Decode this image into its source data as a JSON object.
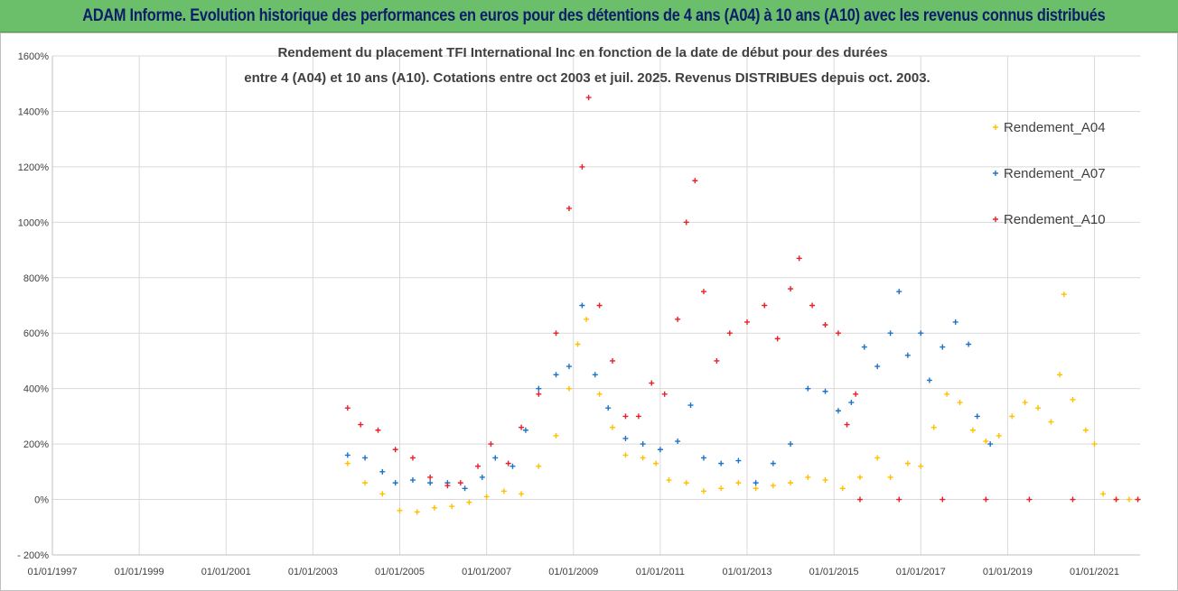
{
  "header": {
    "title": "ADAM Informe. Evolution historique des performances en euros pour des détentions de 4 ans (A04) à 10 ans (A10) avec les revenus connus distribués"
  },
  "chart_data": {
    "type": "scatter",
    "title_lines": [
      "Rendement du placement TFI International Inc en fonction de la date de début pour des durées",
      "entre 4 (A04) et 10 ans (A10).  Cotations entre oct 2003 et juil. 2025. Revenus DISTRIBUES depuis oct. 2003."
    ],
    "xlabel": "",
    "ylabel": "",
    "x_tick_labels": [
      "01/01/1997",
      "01/01/1999",
      "01/01/2001",
      "01/01/2003",
      "01/01/2005",
      "01/01/2007",
      "01/01/2009",
      "01/01/2011",
      "01/01/2013",
      "01/01/2015",
      "01/01/2017",
      "01/01/2019",
      "01/01/2021"
    ],
    "x_tick_years": [
      1997,
      1999,
      2001,
      2003,
      2005,
      2007,
      2009,
      2011,
      2013,
      2015,
      2017,
      2019,
      2021
    ],
    "xlim": [
      1997,
      2022.05
    ],
    "y_ticks": [
      -200,
      0,
      200,
      400,
      600,
      800,
      1000,
      1200,
      1400,
      1600
    ],
    "y_tick_labels": [
      "- 200%",
      "0%",
      "200%",
      "400%",
      "600%",
      "800%",
      "1000%",
      "1200%",
      "1400%",
      "1600%"
    ],
    "ylim": [
      -200,
      1600
    ],
    "grid": true,
    "legend_position": "right",
    "series": [
      {
        "name": "Rendement_A04",
        "color": "#ffc000",
        "points": [
          [
            2003.8,
            130
          ],
          [
            2004.2,
            60
          ],
          [
            2004.6,
            20
          ],
          [
            2005.0,
            -40
          ],
          [
            2005.4,
            -45
          ],
          [
            2005.8,
            -30
          ],
          [
            2006.2,
            -25
          ],
          [
            2006.6,
            -10
          ],
          [
            2007.0,
            10
          ],
          [
            2007.4,
            30
          ],
          [
            2007.8,
            20
          ],
          [
            2008.2,
            120
          ],
          [
            2008.6,
            230
          ],
          [
            2008.9,
            400
          ],
          [
            2009.1,
            560
          ],
          [
            2009.3,
            650
          ],
          [
            2009.6,
            380
          ],
          [
            2009.9,
            260
          ],
          [
            2010.2,
            160
          ],
          [
            2010.6,
            150
          ],
          [
            2010.9,
            130
          ],
          [
            2011.2,
            70
          ],
          [
            2011.6,
            60
          ],
          [
            2012.0,
            30
          ],
          [
            2012.4,
            40
          ],
          [
            2012.8,
            60
          ],
          [
            2013.2,
            40
          ],
          [
            2013.6,
            50
          ],
          [
            2014.0,
            60
          ],
          [
            2014.4,
            80
          ],
          [
            2014.8,
            70
          ],
          [
            2015.2,
            40
          ],
          [
            2015.6,
            80
          ],
          [
            2016.0,
            150
          ],
          [
            2016.3,
            80
          ],
          [
            2016.7,
            130
          ],
          [
            2017.0,
            120
          ],
          [
            2017.3,
            260
          ],
          [
            2017.6,
            380
          ],
          [
            2017.9,
            350
          ],
          [
            2018.2,
            250
          ],
          [
            2018.5,
            210
          ],
          [
            2018.8,
            230
          ],
          [
            2019.1,
            300
          ],
          [
            2019.4,
            350
          ],
          [
            2019.7,
            330
          ],
          [
            2020.0,
            280
          ],
          [
            2020.2,
            450
          ],
          [
            2020.3,
            740
          ],
          [
            2020.5,
            360
          ],
          [
            2020.8,
            250
          ],
          [
            2021.0,
            200
          ],
          [
            2021.2,
            20
          ],
          [
            2021.5,
            0
          ],
          [
            2021.8,
            0
          ],
          [
            2022.0,
            0
          ]
        ]
      },
      {
        "name": "Rendement_A07",
        "color": "#1e73c8",
        "points": [
          [
            2003.8,
            160
          ],
          [
            2004.2,
            150
          ],
          [
            2004.6,
            100
          ],
          [
            2004.9,
            60
          ],
          [
            2005.3,
            70
          ],
          [
            2005.7,
            60
          ],
          [
            2006.1,
            60
          ],
          [
            2006.5,
            40
          ],
          [
            2006.9,
            80
          ],
          [
            2007.2,
            150
          ],
          [
            2007.6,
            120
          ],
          [
            2007.9,
            250
          ],
          [
            2008.2,
            400
          ],
          [
            2008.6,
            450
          ],
          [
            2008.9,
            480
          ],
          [
            2009.2,
            700
          ],
          [
            2009.5,
            450
          ],
          [
            2009.8,
            330
          ],
          [
            2010.2,
            220
          ],
          [
            2010.6,
            200
          ],
          [
            2011.0,
            180
          ],
          [
            2011.4,
            210
          ],
          [
            2011.7,
            340
          ],
          [
            2012.0,
            150
          ],
          [
            2012.4,
            130
          ],
          [
            2012.8,
            140
          ],
          [
            2013.2,
            60
          ],
          [
            2013.6,
            130
          ],
          [
            2014.0,
            200
          ],
          [
            2014.4,
            400
          ],
          [
            2014.8,
            390
          ],
          [
            2015.1,
            320
          ],
          [
            2015.4,
            350
          ],
          [
            2015.7,
            550
          ],
          [
            2016.0,
            480
          ],
          [
            2016.3,
            600
          ],
          [
            2016.5,
            750
          ],
          [
            2016.7,
            520
          ],
          [
            2017.0,
            600
          ],
          [
            2017.2,
            430
          ],
          [
            2017.5,
            550
          ],
          [
            2017.8,
            640
          ],
          [
            2018.1,
            560
          ],
          [
            2018.3,
            300
          ],
          [
            2018.6,
            200
          ]
        ]
      },
      {
        "name": "Rendement_A10",
        "color": "#e8202a",
        "points": [
          [
            2003.8,
            330
          ],
          [
            2004.1,
            270
          ],
          [
            2004.5,
            250
          ],
          [
            2004.9,
            180
          ],
          [
            2005.3,
            150
          ],
          [
            2005.7,
            80
          ],
          [
            2006.1,
            50
          ],
          [
            2006.4,
            60
          ],
          [
            2006.8,
            120
          ],
          [
            2007.1,
            200
          ],
          [
            2007.5,
            130
          ],
          [
            2007.8,
            260
          ],
          [
            2008.2,
            380
          ],
          [
            2008.6,
            600
          ],
          [
            2008.9,
            1050
          ],
          [
            2009.2,
            1200
          ],
          [
            2009.35,
            1450
          ],
          [
            2009.6,
            700
          ],
          [
            2009.9,
            500
          ],
          [
            2010.2,
            300
          ],
          [
            2010.5,
            300
          ],
          [
            2010.8,
            420
          ],
          [
            2011.1,
            380
          ],
          [
            2011.4,
            650
          ],
          [
            2011.6,
            1000
          ],
          [
            2011.8,
            1150
          ],
          [
            2012.0,
            750
          ],
          [
            2012.3,
            500
          ],
          [
            2012.6,
            600
          ],
          [
            2013.0,
            640
          ],
          [
            2013.4,
            700
          ],
          [
            2013.7,
            580
          ],
          [
            2014.0,
            760
          ],
          [
            2014.2,
            870
          ],
          [
            2014.5,
            700
          ],
          [
            2014.8,
            630
          ],
          [
            2015.1,
            600
          ],
          [
            2015.3,
            270
          ],
          [
            2015.5,
            380
          ],
          [
            2015.6,
            0
          ],
          [
            2016.5,
            0
          ],
          [
            2017.5,
            0
          ],
          [
            2018.5,
            0
          ],
          [
            2019.5,
            0
          ],
          [
            2020.5,
            0
          ],
          [
            2021.5,
            0
          ],
          [
            2022.0,
            0
          ]
        ]
      }
    ]
  }
}
